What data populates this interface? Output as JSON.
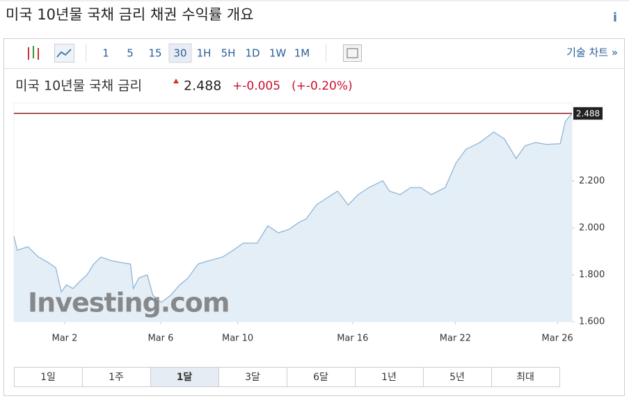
{
  "header": {
    "title": "미국 10년물 국채 금리   채권 수익률 개요",
    "info": "i"
  },
  "toolbar": {
    "intervals": [
      "1",
      "5",
      "15",
      "30",
      "1H",
      "5H",
      "1D",
      "1W",
      "1M"
    ],
    "active_interval": 3,
    "technical_chart": "기술 차트 »"
  },
  "quote": {
    "name": "미국 10년물 국채 금리",
    "price": "2.488",
    "change": "+-0.005",
    "change_pct": "(+-0.20%)"
  },
  "chart_data": {
    "type": "area",
    "watermark": "Investing.com",
    "color": "#8fb4d6",
    "fill": "#e4eef6",
    "last_line_color": "#8b1a1a",
    "x": [
      0,
      0.6,
      2.5,
      4.4,
      6.2,
      7.5,
      8.5,
      9.4,
      10.6,
      11.8,
      13.1,
      14.3,
      15.6,
      17.5,
      19.3,
      20.9,
      21.4,
      22.4,
      23.9,
      24.9,
      26.4,
      28.1,
      29.7,
      31.2,
      33,
      34.9,
      37.4,
      39.3,
      41.1,
      43.6,
      45.5,
      47.4,
      49.3,
      51.1,
      52.4,
      54.2,
      56.1,
      58,
      59.9,
      61.7,
      63.6,
      66.1,
      67.3,
      69.2,
      71.1,
      72.9,
      74.8,
      77.3,
      79.2,
      81,
      83.5,
      86,
      87.9,
      90,
      91.6,
      93.5,
      95.4,
      97.9,
      98.8,
      100
    ],
    "values": [
      1.964,
      1.905,
      1.92,
      1.876,
      1.852,
      1.83,
      1.727,
      1.757,
      1.742,
      1.772,
      1.8,
      1.846,
      1.876,
      1.86,
      1.852,
      1.846,
      1.742,
      1.787,
      1.8,
      1.713,
      1.683,
      1.713,
      1.757,
      1.787,
      1.846,
      1.86,
      1.876,
      1.905,
      1.935,
      1.935,
      2.009,
      1.979,
      1.994,
      2.024,
      2.039,
      2.098,
      2.128,
      2.157,
      2.098,
      2.142,
      2.172,
      2.201,
      2.157,
      2.142,
      2.172,
      2.172,
      2.142,
      2.172,
      2.276,
      2.335,
      2.364,
      2.409,
      2.379,
      2.296,
      2.35,
      2.364,
      2.356,
      2.359,
      2.453,
      2.488
    ],
    "xlim": [
      0,
      100
    ],
    "ylim": [
      1.6,
      2.533
    ],
    "xticks": [
      {
        "value": 9.1,
        "label": "Mar 2"
      },
      {
        "value": 26.3,
        "label": "Mar 6"
      },
      {
        "value": 40.1,
        "label": "Mar 10"
      },
      {
        "value": 60.7,
        "label": "Mar 16"
      },
      {
        "value": 79.1,
        "label": "Mar 22"
      },
      {
        "value": 97.4,
        "label": "Mar 26"
      }
    ],
    "yticks": [
      {
        "value": 1.6,
        "label": "1.600"
      },
      {
        "value": 1.8,
        "label": "1.800"
      },
      {
        "value": 2.0,
        "label": "2.000"
      },
      {
        "value": 2.2,
        "label": "2.200"
      }
    ]
  },
  "period_tabs": [
    "1일",
    "1주",
    "1달",
    "3달",
    "6달",
    "1년",
    "5년",
    "최대"
  ],
  "active_tab": 2
}
